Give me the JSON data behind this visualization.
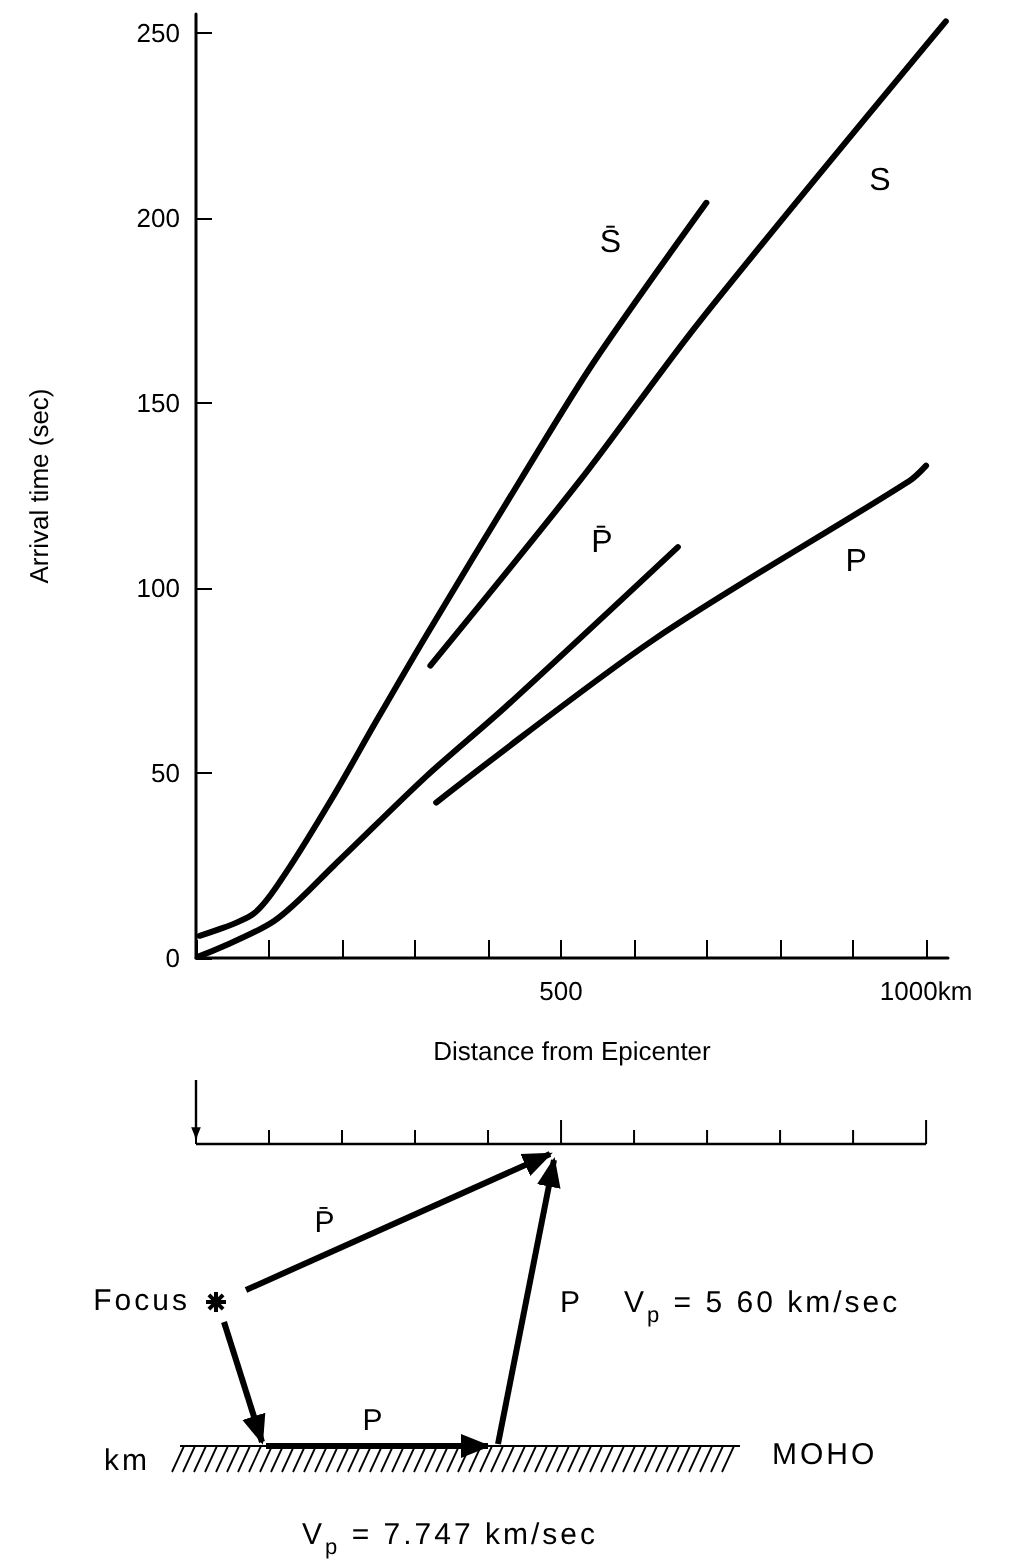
{
  "chart_data": {
    "type": "line",
    "xlabel": "Distance from Epicenter",
    "ylabel": "Arrival time (sec)",
    "xlim": [
      0,
      1030
    ],
    "ylim": [
      0,
      255
    ],
    "xticks": [
      {
        "value": 0,
        "label": null
      },
      {
        "value": 100,
        "label": null
      },
      {
        "value": 200,
        "label": null
      },
      {
        "value": 300,
        "label": null
      },
      {
        "value": 400,
        "label": null
      },
      500,
      {
        "value": 600,
        "label": null
      },
      {
        "value": 700,
        "label": null
      },
      {
        "value": 800,
        "label": null
      },
      {
        "value": 900,
        "label": null
      },
      {
        "value": 1000,
        "label": "1000km"
      }
    ],
    "yticks": [
      0,
      50,
      100,
      150,
      200,
      250
    ],
    "marker": "none",
    "line_style": "solid",
    "grid": false,
    "legend": false,
    "series": [
      {
        "name": "S̄",
        "color": "#000000",
        "x": [
          5,
          79,
          123,
          189,
          244,
          315,
          444,
          545,
          699
        ],
        "values": [
          6,
          12,
          23,
          44,
          63,
          87,
          129,
          161,
          204
        ]
      },
      {
        "name": "S",
        "color": "#000000",
        "x": [
          321,
          526,
          690,
          1027
        ],
        "values": [
          79,
          129,
          172,
          253
        ]
      },
      {
        "name": "P̄",
        "color": "#000000",
        "x": [
          5,
          107,
          189,
          315,
          425,
          660
        ],
        "values": [
          0.5,
          10,
          25,
          49,
          68,
          111
        ]
      },
      {
        "name": "P",
        "color": "#000000",
        "x": [
          329,
          627,
          978,
          1000
        ],
        "values": [
          42,
          86,
          129,
          133
        ]
      }
    ],
    "annotations": [
      "Focus",
      "P̄",
      "P",
      "V$_{p}$ = 5 60 km/sec",
      "P",
      "km",
      "MOHO",
      "V$_{p}$ = 7.747 km/sec"
    ]
  }
}
